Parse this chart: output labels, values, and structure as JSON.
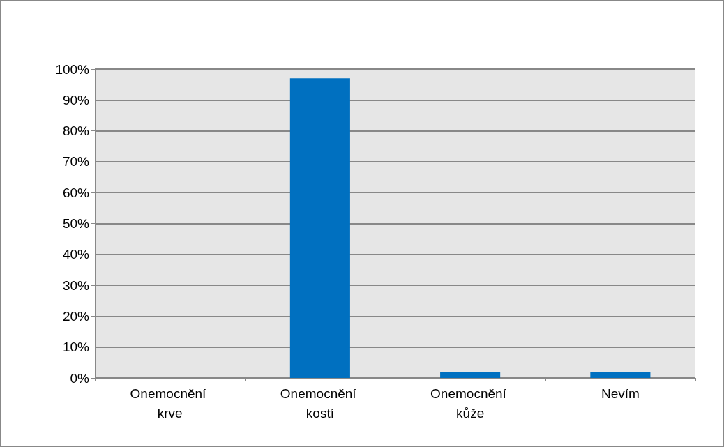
{
  "chart_data": {
    "type": "bar",
    "categories": [
      "Onemocnění krve",
      "Onemocnění kostí",
      "Onemocnění kůže",
      "Nevím"
    ],
    "values": [
      0,
      97,
      2,
      2
    ],
    "color": "#0070c0",
    "ylim": [
      0,
      100
    ],
    "yticks": [
      {
        "value": 0,
        "label": "0%"
      },
      {
        "value": 10,
        "label": "10%"
      },
      {
        "value": 20,
        "label": "20%"
      },
      {
        "value": 30,
        "label": "30%"
      },
      {
        "value": 40,
        "label": "40%"
      },
      {
        "value": 50,
        "label": "50%"
      },
      {
        "value": 60,
        "label": "60%"
      },
      {
        "value": 70,
        "label": "70%"
      },
      {
        "value": 80,
        "label": "80%"
      },
      {
        "value": 90,
        "label": "90%"
      },
      {
        "value": 100,
        "label": "100%"
      }
    ],
    "grid": true
  }
}
